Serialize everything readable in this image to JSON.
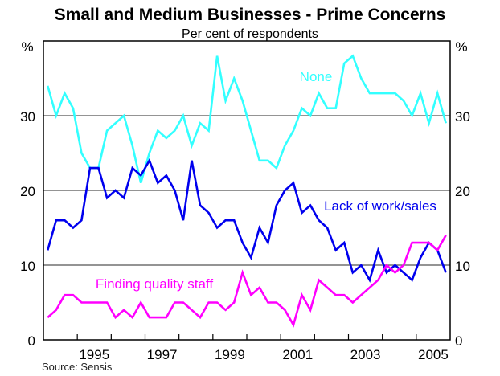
{
  "chart_data": {
    "type": "line",
    "title": "Small and Medium Businesses - Prime Concerns",
    "subtitle": "Per cent of respondents",
    "ylabel_left": "%",
    "ylabel_right": "%",
    "source": "Source: Sensis",
    "xlim": [
      1994.0,
      2006.0
    ],
    "ylim": [
      0,
      40
    ],
    "yticks": [
      0,
      10,
      20,
      30
    ],
    "xtick_labels": [
      "1995",
      "1997",
      "1999",
      "2001",
      "2003",
      "2005"
    ],
    "x_start": 1994.125,
    "x_step": 0.25,
    "grid": true,
    "series": [
      {
        "name": "None",
        "color": "#33ffff",
        "values": [
          34,
          30,
          33,
          31,
          25,
          23,
          23,
          28,
          29,
          30,
          26,
          21,
          25,
          28,
          27,
          28,
          30,
          26,
          29,
          28,
          38,
          32,
          35,
          32,
          28,
          24,
          24,
          23,
          26,
          28,
          31,
          30,
          33,
          31,
          31,
          37,
          38,
          35,
          33,
          33,
          33,
          33,
          32,
          30,
          33,
          29,
          33,
          29
        ]
      },
      {
        "name": "Lack of work/sales",
        "color": "#0000ee",
        "values": [
          12,
          16,
          16,
          15,
          16,
          23,
          23,
          19,
          20,
          19,
          23,
          22,
          24,
          21,
          22,
          20,
          16,
          24,
          18,
          17,
          15,
          16,
          16,
          13,
          11,
          15,
          13,
          18,
          20,
          21,
          17,
          18,
          16,
          15,
          12,
          13,
          9,
          10,
          8,
          12,
          9,
          10,
          9,
          8,
          11,
          13,
          12,
          9
        ]
      },
      {
        "name": "Finding quality staff",
        "color": "#ff00ff",
        "values": [
          3,
          4,
          6,
          6,
          5,
          5,
          5,
          5,
          3,
          4,
          3,
          5,
          3,
          3,
          3,
          5,
          5,
          4,
          3,
          5,
          5,
          4,
          5,
          9,
          6,
          7,
          5,
          5,
          4,
          2,
          6,
          4,
          8,
          7,
          6,
          6,
          5,
          6,
          7,
          8,
          10,
          9,
          10,
          13,
          13,
          13,
          12,
          14
        ]
      }
    ]
  }
}
